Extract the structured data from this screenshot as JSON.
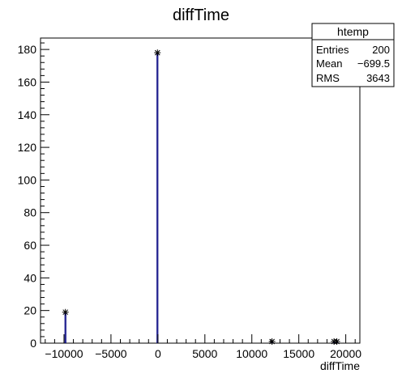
{
  "chart_data": {
    "type": "bar",
    "title": "diffTime",
    "xlabel": "diffTime",
    "ylabel": "",
    "xlim": [
      -12500,
      21500
    ],
    "ylim": [
      0,
      187
    ],
    "x_ticks": [
      -10000,
      -5000,
      0,
      5000,
      10000,
      15000,
      20000
    ],
    "x_tick_labels": [
      "−10000",
      "−5000",
      "0",
      "5000",
      "10000",
      "15000",
      "20000"
    ],
    "y_ticks": [
      0,
      20,
      40,
      60,
      80,
      100,
      120,
      140,
      160,
      180
    ],
    "y_tick_labels": [
      "0",
      "20",
      "40",
      "60",
      "80",
      "100",
      "120",
      "140",
      "160",
      "180"
    ],
    "bin_width": 100,
    "bins": [
      {
        "x": -9850,
        "count": 19
      },
      {
        "x": -50,
        "count": 178
      },
      {
        "x": 12150,
        "count": 1
      },
      {
        "x": 18750,
        "count": 1
      },
      {
        "x": 19050,
        "count": 1
      }
    ],
    "grid": false,
    "line_color": "#000080",
    "marker": "star"
  },
  "stats_box": {
    "name": "htemp",
    "rows": [
      {
        "label": "Entries",
        "value": "200"
      },
      {
        "label": "Mean",
        "value": "−699.5"
      },
      {
        "label": "RMS",
        "value": "3643"
      }
    ]
  }
}
